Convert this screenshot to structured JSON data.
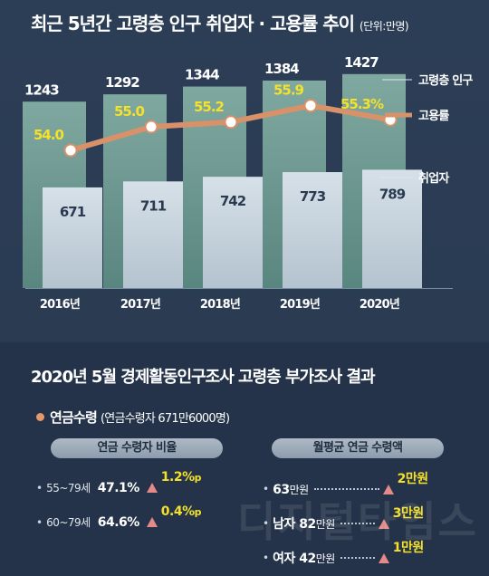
{
  "header": {
    "title": "최근 5년간 고령층 인구 취업자 · 고용률 추이",
    "unit": "(단위:만명)"
  },
  "chart_data": {
    "type": "bar",
    "categories": [
      "2016년",
      "2017년",
      "2018년",
      "2019년",
      "2020년"
    ],
    "series": [
      {
        "name": "고령층 인구",
        "type": "bar",
        "values": [
          1243,
          1292,
          1344,
          1384,
          1427
        ],
        "color": "#6f9a93"
      },
      {
        "name": "취업자",
        "type": "bar",
        "values": [
          671,
          711,
          742,
          773,
          789
        ],
        "color": "#c9d6df"
      },
      {
        "name": "고용률",
        "type": "line",
        "values": [
          54.0,
          55.0,
          55.2,
          55.9,
          55.3
        ],
        "labels": [
          "54.0",
          "55.0",
          "55.2",
          "55.9",
          "55.3%"
        ],
        "color": "#e4996b"
      }
    ],
    "legend": [
      "고령층 인구",
      "고용률",
      "취업자"
    ],
    "ylim": [
      0,
      1450
    ],
    "rate_ylim": [
      52,
      57
    ]
  },
  "section": {
    "title": "2020년 5월 경제활동인구조사 고령층 부가조사 결과"
  },
  "pension": {
    "head": "연금수령",
    "sub": "(연금수령자 671만6000명)",
    "left_pill": "연금 수령자 비율",
    "right_pill": "월평균 연금 수령액",
    "ratio_rows": [
      {
        "age": "55~79세",
        "pct": "47.1%",
        "change": "1.2%",
        "suffix": "p"
      },
      {
        "age": "60~79세",
        "pct": "64.6%",
        "change": "0.4%",
        "suffix": "p"
      }
    ],
    "amount_rows": [
      {
        "label": "",
        "amount": "63",
        "unit": "만원",
        "change": "2만원"
      },
      {
        "label": "남자 ",
        "amount": "82",
        "unit": "만원",
        "change": "3만원"
      },
      {
        "label": "여자 ",
        "amount": "42",
        "unit": "만원",
        "change": "1만원"
      }
    ]
  },
  "watermark": "디지털타임스",
  "colors": {
    "background": "#26364d",
    "pop_bar": "#6f9a93",
    "emp_bar": "#c9d6df",
    "rate_line": "#e4996b",
    "highlight": "#f5e12a",
    "increase": "#e58a8a"
  }
}
